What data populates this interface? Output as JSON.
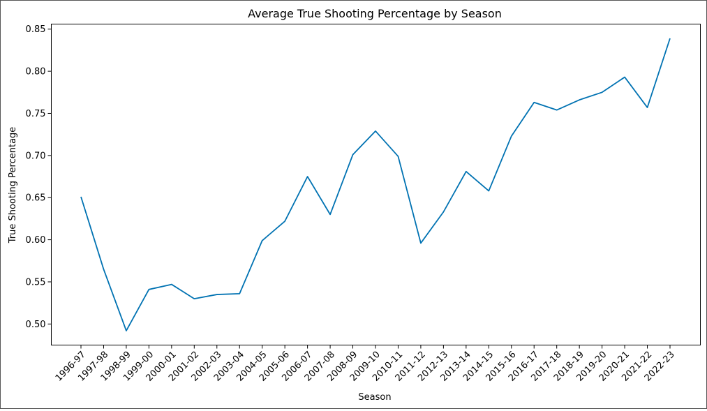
{
  "chart_data": {
    "type": "line",
    "title": "Average True Shooting Percentage by Season",
    "xlabel": "Season",
    "ylabel": "True Shooting Percentage",
    "categories": [
      "1996-97",
      "1997-98",
      "1998-99",
      "1999-00",
      "2000-01",
      "2001-02",
      "2002-03",
      "2003-04",
      "2004-05",
      "2005-06",
      "2006-07",
      "2007-08",
      "2008-09",
      "2009-10",
      "2010-11",
      "2011-12",
      "2012-13",
      "2013-14",
      "2014-15",
      "2015-16",
      "2016-17",
      "2017-18",
      "2018-19",
      "2019-20",
      "2020-21",
      "2021-22",
      "2022-23"
    ],
    "series": [
      {
        "values": [
          0.651,
          0.565,
          0.492,
          0.541,
          0.547,
          0.53,
          0.535,
          0.536,
          0.599,
          0.622,
          0.675,
          0.63,
          0.701,
          0.729,
          0.699,
          0.596,
          0.633,
          0.681,
          0.658,
          0.723,
          0.763,
          0.754,
          0.766,
          0.775,
          0.793,
          0.757,
          0.839
        ],
        "color": "#0072b2"
      }
    ],
    "yticks": [
      "0.50",
      "0.55",
      "0.60",
      "0.65",
      "0.70",
      "0.75",
      "0.80",
      "0.85"
    ],
    "ylim": [
      0.475,
      0.856
    ],
    "grid": false,
    "legend": "none"
  }
}
